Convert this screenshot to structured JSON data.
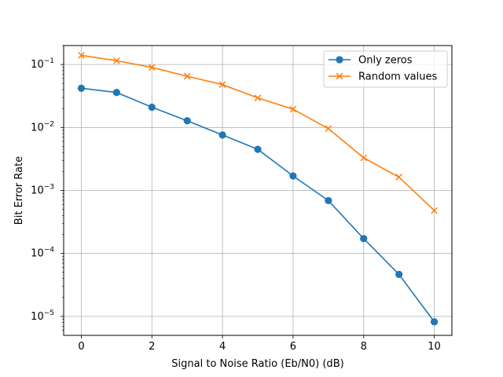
{
  "chart_data": {
    "type": "line",
    "title": "",
    "xlabel": "Signal to Noise Ratio (Eb/N0) (dB)",
    "ylabel": "Bit Error Rate",
    "yscale": "log",
    "xlim": [
      -0.5,
      10.5
    ],
    "ylim": [
      5e-06,
      0.2
    ],
    "grid": true,
    "legend_position": "top-right",
    "x": [
      0,
      1,
      2,
      3,
      4,
      5,
      6,
      7,
      8,
      9,
      10
    ],
    "x_ticks": [
      "0",
      "2",
      "4",
      "6",
      "8",
      "10"
    ],
    "series": [
      {
        "name": "Only zeros",
        "marker": "circle",
        "color": "#1f77b4",
        "values": [
          0.042,
          0.036,
          0.021,
          0.0128,
          0.0076,
          0.0045,
          0.0017,
          0.00069,
          0.000172,
          4.65e-05,
          8.2e-06
        ]
      },
      {
        "name": "Random values",
        "marker": "x",
        "color": "#ff7f0e",
        "values": [
          0.14,
          0.115,
          0.09,
          0.065,
          0.048,
          0.0295,
          0.0195,
          0.0096,
          0.0033,
          0.00163,
          0.00048
        ]
      }
    ]
  }
}
